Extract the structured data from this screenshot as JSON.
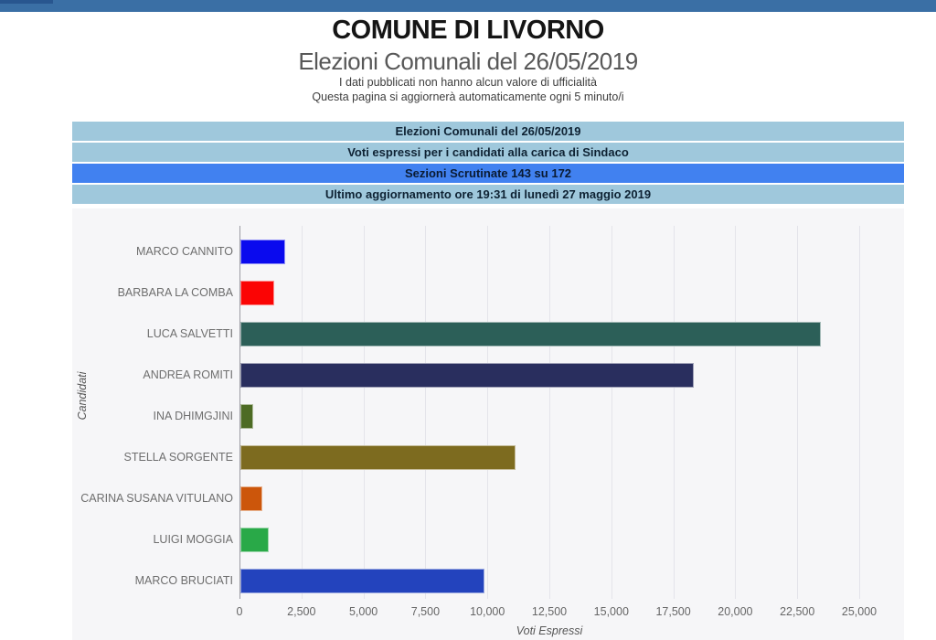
{
  "page": {
    "title": "COMUNE DI LIVORNO",
    "subtitle": "Elezioni Comunali del 26/05/2019",
    "note1": "I dati pubblicati non hanno alcun valore di ufficialità",
    "note2": "Questa pagina si aggiornerà automaticamente ogni 5 minuto/i"
  },
  "banner": {
    "rows": [
      {
        "label": "Elezioni Comunali del 26/05/2019"
      },
      {
        "label": "Voti espressi per i candidati alla carica di Sindaco"
      },
      {
        "label": "Sezioni Scrutinate 143 su 172"
      },
      {
        "label": "Ultimo aggiornamento ore 19:31 di lunedì 27 maggio 2019"
      }
    ],
    "colors": {
      "normal_bg": "#9fc8dc",
      "highlight_bg": "#4181f0",
      "text": "#0e2233"
    }
  },
  "chart_data": {
    "type": "bar",
    "orientation": "horizontal",
    "title": "",
    "xlabel": "Voti Espressi",
    "ylabel": "Candidati",
    "grid": true,
    "xlim": [
      0,
      26750
    ],
    "xticks": [
      0,
      2500,
      5000,
      7500,
      10000,
      12500,
      15000,
      17500,
      20000,
      22500,
      25000
    ],
    "tick_labels": [
      "0",
      "2,500",
      "5,000",
      "7,500",
      "10,000",
      "12,500",
      "15,000",
      "17,500",
      "20,000",
      "22,500",
      "25,000"
    ],
    "categories": [
      "MARCO CANNITO",
      "BARBARA LA COMBA",
      "LUCA SALVETTI",
      "ANDREA ROMITI",
      "INA DHIMGJINI",
      "STELLA SORGENTE",
      "CARINA SUSANA VITULANO",
      "LUIGI MOGGIA",
      "MARCO BRUCIATI"
    ],
    "values": [
      1800,
      1350,
      23400,
      18300,
      500,
      11100,
      900,
      1150,
      9850
    ],
    "colors": [
      "#0a0aee",
      "#fb0404",
      "#2c5f58",
      "#292e5e",
      "#4d6b24",
      "#7d6b1f",
      "#cc560b",
      "#29a948",
      "#2343bd"
    ],
    "plot_bg": "#f6f6f8",
    "gridline_color": "#e4e4ea"
  }
}
